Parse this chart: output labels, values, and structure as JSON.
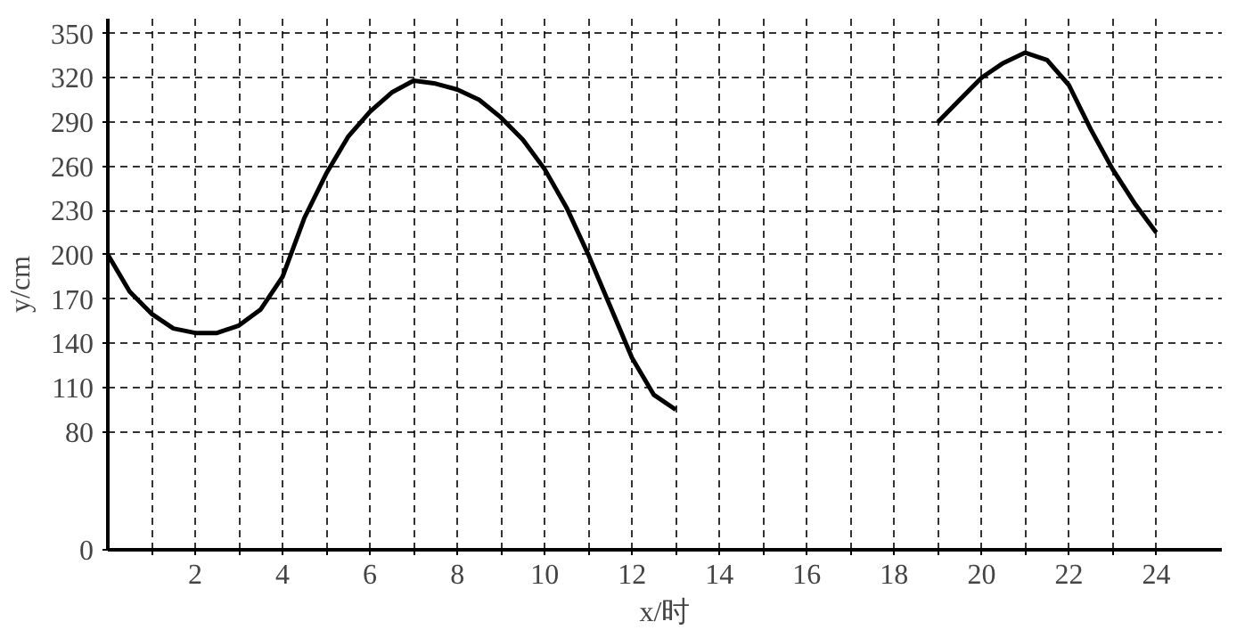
{
  "chart_data": {
    "type": "line",
    "xlabel": "x/时",
    "ylabel": "y/cm",
    "series": [
      {
        "color": "#000000",
        "x": [
          0,
          0.5,
          1,
          1.5,
          2,
          2.5,
          3,
          3.5,
          4,
          4.5,
          5,
          5.5,
          6,
          6.5,
          7,
          7.5,
          8,
          8.5,
          9,
          9.5,
          10,
          10.5,
          11,
          11.5,
          12,
          12.5,
          13
        ],
        "values": [
          200,
          175,
          160,
          150,
          147,
          147,
          152,
          163,
          185,
          225,
          255,
          280,
          297,
          310,
          318,
          316,
          312,
          305,
          293,
          278,
          258,
          232,
          200,
          165,
          130,
          105,
          95
        ]
      },
      {
        "color": "#000000",
        "x": [
          19,
          19.5,
          20,
          20.5,
          21,
          21.5,
          22,
          22.5,
          23,
          23.5,
          24
        ],
        "values": [
          290,
          305,
          320,
          330,
          337,
          332,
          315,
          285,
          258,
          235,
          215
        ]
      }
    ],
    "xlim": [
      0,
      25.5
    ],
    "ylim": [
      0,
      360
    ],
    "xticks": [
      {
        "value": 1,
        "label": null
      },
      2,
      {
        "value": 3,
        "label": null
      },
      4,
      {
        "value": 5,
        "label": null
      },
      6,
      {
        "value": 7,
        "label": null
      },
      8,
      {
        "value": 9,
        "label": null
      },
      10,
      {
        "value": 11,
        "label": null
      },
      12,
      {
        "value": 13,
        "label": null
      },
      14,
      {
        "value": 15,
        "label": null
      },
      16,
      {
        "value": 17,
        "label": null
      },
      18,
      {
        "value": 19,
        "label": null
      },
      20,
      {
        "value": 21,
        "label": null
      },
      22,
      {
        "value": 23,
        "label": null
      },
      24
    ],
    "yticks": [
      0,
      80,
      110,
      140,
      170,
      200,
      230,
      260,
      290,
      320,
      350
    ],
    "grid": true,
    "line_style": "solid",
    "marker": "none"
  }
}
